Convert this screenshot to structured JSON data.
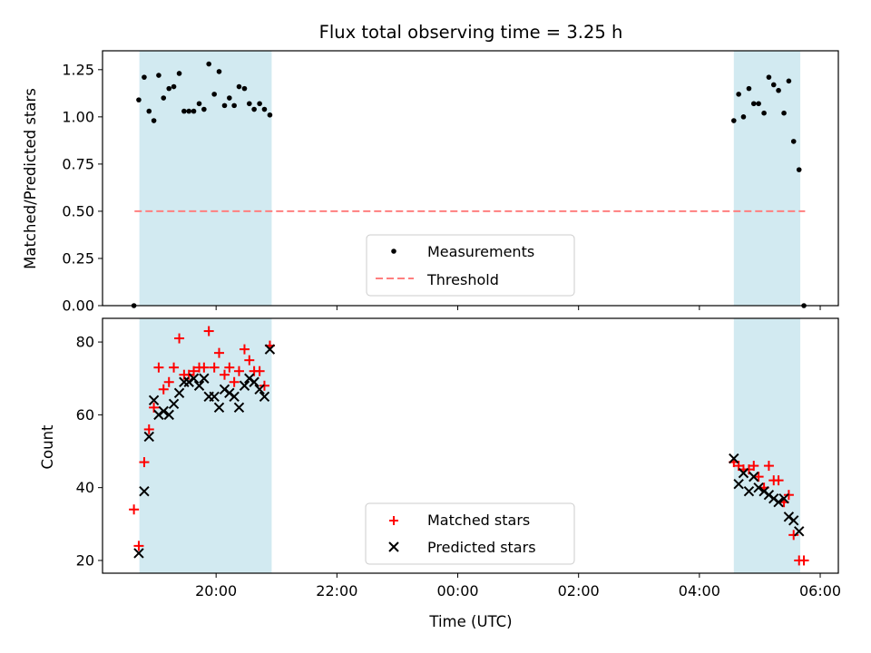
{
  "chart_data": [
    {
      "panel": "top",
      "type": "scatter",
      "title": "Flux total observing time = 3.25 h",
      "xlabel": "",
      "ylabel": "Matched/Predicted stars",
      "x_unit": "hours since 00:00 UTC",
      "xlim": [
        -5.88,
        6.3
      ],
      "ylim": [
        0,
        1.35
      ],
      "yticks": [
        0.0,
        0.25,
        0.5,
        0.75,
        1.0,
        1.25
      ],
      "ytick_labels": [
        "0.00",
        "0.25",
        "0.50",
        "0.75",
        "1.00",
        "1.25"
      ],
      "shaded_intervals": [
        [
          -5.27,
          -3.08
        ],
        [
          4.57,
          5.67
        ]
      ],
      "threshold": {
        "name": "Threshold",
        "value": 0.5,
        "x_range": [
          -5.35,
          5.75
        ],
        "color": "#ff7f7f",
        "style": "dashed"
      },
      "legend": {
        "location": "lower-center",
        "entries": [
          "Measurements",
          "Threshold"
        ]
      },
      "series": [
        {
          "name": "Measurements",
          "color": "#000000",
          "points": [
            [
              -5.36,
              0.0
            ],
            [
              -5.28,
              1.09
            ],
            [
              -5.19,
              1.21
            ],
            [
              -5.11,
              1.03
            ],
            [
              -5.03,
              0.98
            ],
            [
              -4.95,
              1.22
            ],
            [
              -4.87,
              1.1
            ],
            [
              -4.78,
              1.15
            ],
            [
              -4.7,
              1.16
            ],
            [
              -4.61,
              1.23
            ],
            [
              -4.53,
              1.03
            ],
            [
              -4.45,
              1.03
            ],
            [
              -4.37,
              1.03
            ],
            [
              -4.28,
              1.07
            ],
            [
              -4.2,
              1.04
            ],
            [
              -4.12,
              1.28
            ],
            [
              -4.03,
              1.12
            ],
            [
              -3.95,
              1.24
            ],
            [
              -3.86,
              1.06
            ],
            [
              -3.78,
              1.1
            ],
            [
              -3.7,
              1.06
            ],
            [
              -3.62,
              1.16
            ],
            [
              -3.53,
              1.15
            ],
            [
              -3.45,
              1.07
            ],
            [
              -3.37,
              1.04
            ],
            [
              -3.28,
              1.07
            ],
            [
              -3.2,
              1.04
            ],
            [
              -3.11,
              1.01
            ],
            [
              4.57,
              0.98
            ],
            [
              4.65,
              1.12
            ],
            [
              4.73,
              1.0
            ],
            [
              4.82,
              1.15
            ],
            [
              4.9,
              1.07
            ],
            [
              4.98,
              1.07
            ],
            [
              5.07,
              1.02
            ],
            [
              5.15,
              1.21
            ],
            [
              5.23,
              1.17
            ],
            [
              5.31,
              1.14
            ],
            [
              5.4,
              1.02
            ],
            [
              5.48,
              1.19
            ],
            [
              5.56,
              0.87
            ],
            [
              5.65,
              0.72
            ],
            [
              5.73,
              0.0
            ]
          ]
        }
      ]
    },
    {
      "panel": "bottom",
      "type": "scatter",
      "title": "",
      "xlabel": "Time (UTC)",
      "ylabel": "Count",
      "x_unit": "hours since 00:00 UTC",
      "xlim": [
        -5.88,
        6.3
      ],
      "ylim": [
        16.5,
        86.5
      ],
      "xticks": [
        -4,
        -2,
        0,
        2,
        4,
        6
      ],
      "xtick_labels": [
        "20:00",
        "22:00",
        "00:00",
        "02:00",
        "04:00",
        "06:00"
      ],
      "yticks": [
        20,
        40,
        60,
        80
      ],
      "ytick_labels": [
        "20",
        "40",
        "60",
        "80"
      ],
      "shaded_intervals": [
        [
          -5.27,
          -3.08
        ],
        [
          4.57,
          5.67
        ]
      ],
      "legend": {
        "location": "lower-center",
        "entries": [
          "Matched stars",
          "Predicted stars"
        ]
      },
      "series": [
        {
          "name": "Matched stars",
          "color": "#ff0000",
          "marker": "+",
          "points": [
            [
              -5.36,
              34
            ],
            [
              -5.28,
              24
            ],
            [
              -5.19,
              47
            ],
            [
              -5.11,
              56
            ],
            [
              -5.03,
              62
            ],
            [
              -4.95,
              73
            ],
            [
              -4.87,
              67
            ],
            [
              -4.78,
              69
            ],
            [
              -4.7,
              73
            ],
            [
              -4.61,
              81
            ],
            [
              -4.53,
              71
            ],
            [
              -4.45,
              71
            ],
            [
              -4.37,
              72
            ],
            [
              -4.28,
              73
            ],
            [
              -4.2,
              73
            ],
            [
              -4.12,
              83
            ],
            [
              -4.03,
              73
            ],
            [
              -3.95,
              77
            ],
            [
              -3.86,
              71
            ],
            [
              -3.78,
              73
            ],
            [
              -3.7,
              69
            ],
            [
              -3.62,
              72
            ],
            [
              -3.53,
              78
            ],
            [
              -3.45,
              75
            ],
            [
              -3.37,
              72
            ],
            [
              -3.28,
              72
            ],
            [
              -3.2,
              68
            ],
            [
              -3.11,
              79
            ],
            [
              4.57,
              47
            ],
            [
              4.65,
              46
            ],
            [
              4.73,
              45
            ],
            [
              4.82,
              45
            ],
            [
              4.9,
              46
            ],
            [
              4.98,
              43
            ],
            [
              5.07,
              40
            ],
            [
              5.15,
              46
            ],
            [
              5.23,
              42
            ],
            [
              5.31,
              42
            ],
            [
              5.4,
              36
            ],
            [
              5.48,
              38
            ],
            [
              5.56,
              27
            ],
            [
              5.65,
              20
            ],
            [
              5.73,
              20
            ]
          ]
        },
        {
          "name": "Predicted stars",
          "color": "#000000",
          "marker": "x",
          "points": [
            [
              -5.28,
              22
            ],
            [
              -5.19,
              39
            ],
            [
              -5.11,
              54
            ],
            [
              -5.03,
              64
            ],
            [
              -4.95,
              60
            ],
            [
              -4.87,
              61
            ],
            [
              -4.78,
              60
            ],
            [
              -4.7,
              63
            ],
            [
              -4.61,
              66
            ],
            [
              -4.53,
              69
            ],
            [
              -4.45,
              69
            ],
            [
              -4.37,
              70
            ],
            [
              -4.28,
              68
            ],
            [
              -4.2,
              70
            ],
            [
              -4.12,
              65
            ],
            [
              -4.03,
              65
            ],
            [
              -3.95,
              62
            ],
            [
              -3.86,
              67
            ],
            [
              -3.78,
              66
            ],
            [
              -3.7,
              65
            ],
            [
              -3.62,
              62
            ],
            [
              -3.53,
              68
            ],
            [
              -3.45,
              70
            ],
            [
              -3.37,
              69
            ],
            [
              -3.28,
              67
            ],
            [
              -3.2,
              65
            ],
            [
              -3.11,
              78
            ],
            [
              4.57,
              48
            ],
            [
              4.65,
              41
            ],
            [
              4.73,
              44
            ],
            [
              4.82,
              39
            ],
            [
              4.9,
              43
            ],
            [
              4.98,
              40
            ],
            [
              5.07,
              39
            ],
            [
              5.15,
              38
            ],
            [
              5.23,
              37
            ],
            [
              5.31,
              36
            ],
            [
              5.4,
              37
            ],
            [
              5.48,
              32
            ],
            [
              5.56,
              31
            ],
            [
              5.65,
              28
            ]
          ]
        }
      ]
    }
  ],
  "colors": {
    "shade": "#add8e6",
    "matched": "#ff0000",
    "predicted": "#000000",
    "measurement": "#000000",
    "threshold": "#ff7f7f"
  }
}
